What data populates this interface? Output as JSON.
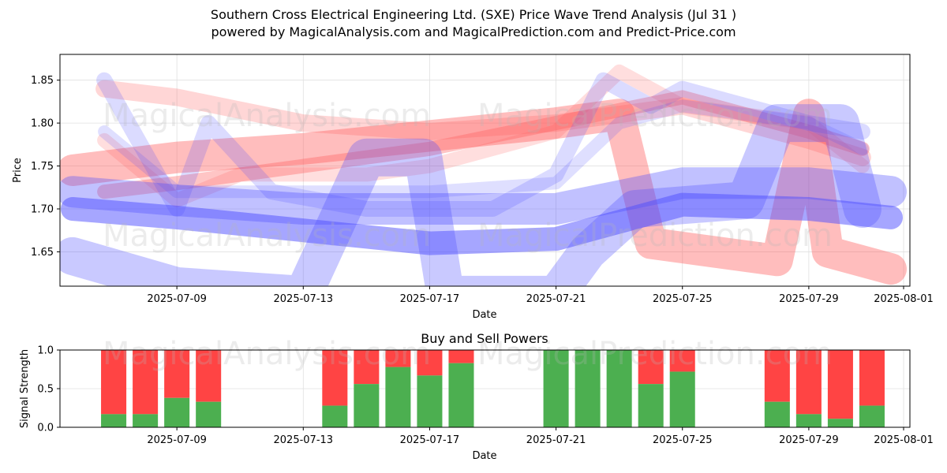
{
  "header": {
    "title": "Southern Cross Electrical Engineering Ltd. (SXE) Price Wave Trend Analysis (Jul 31 )",
    "subtitle": "powered by MagicalAnalysis.com and MagicalPrediction.com and Predict-Price.com"
  },
  "watermarks": [
    "MagicalAnalysis.com",
    "MagicalPrediction.com"
  ],
  "colors": {
    "buy": "#4caf50",
    "sell": "#ff4444",
    "red_band": "#ff5a5a",
    "blue_band": "#4d4dff",
    "grid": "#e0e0e0"
  },
  "chart_data": [
    {
      "type": "line",
      "name": "price-wave-chart",
      "xlabel": "Date",
      "ylabel": "Price",
      "xticks": [
        "2025-07-09",
        "2025-07-13",
        "2025-07-17",
        "2025-07-21",
        "2025-07-25",
        "2025-07-29",
        "2025-08-01"
      ],
      "yticks": [
        "1.65",
        "1.70",
        "1.75",
        "1.80",
        "1.85"
      ],
      "yrange": [
        1.61,
        1.88
      ],
      "xrange_days": [
        5.3,
        32.2
      ],
      "grid": true,
      "series": [
        {
          "name": "red-wave-1",
          "color": "red",
          "opacity": 0.35,
          "width": 18,
          "points": [
            [
              6.7,
              1.72
            ],
            [
              9,
              1.73
            ],
            [
              13,
              1.75
            ],
            [
              17,
              1.77
            ],
            [
              21,
              1.8
            ],
            [
              25,
              1.83
            ],
            [
              29,
              1.79
            ],
            [
              30.7,
              1.77
            ]
          ]
        },
        {
          "name": "red-wave-2",
          "color": "red",
          "opacity": 0.25,
          "width": 22,
          "points": [
            [
              6.7,
              1.84
            ],
            [
              9,
              1.83
            ],
            [
              13,
              1.8
            ],
            [
              17,
              1.79
            ],
            [
              21,
              1.8
            ],
            [
              25,
              1.82
            ],
            [
              29,
              1.78
            ],
            [
              30.7,
              1.76
            ]
          ]
        },
        {
          "name": "red-wave-3",
          "color": "red",
          "opacity": 0.4,
          "width": 40,
          "points": [
            [
              5.7,
              1.745
            ],
            [
              9,
              1.76
            ],
            [
              13,
              1.77
            ],
            [
              17,
              1.785
            ],
            [
              21,
              1.8
            ],
            [
              23,
              1.81
            ],
            [
              24,
              1.66
            ],
            [
              28,
              1.64
            ],
            [
              29,
              1.81
            ],
            [
              29.6,
              1.65
            ],
            [
              31.6,
              1.63
            ]
          ]
        },
        {
          "name": "red-wave-4",
          "color": "red",
          "opacity": 0.2,
          "width": 18,
          "points": [
            [
              6.7,
              1.78
            ],
            [
              9,
              1.71
            ],
            [
              11,
              1.74
            ],
            [
              15,
              1.74
            ],
            [
              17,
              1.75
            ],
            [
              21,
              1.79
            ],
            [
              23,
              1.86
            ],
            [
              25,
              1.82
            ],
            [
              29,
              1.8
            ],
            [
              30.7,
              1.75
            ]
          ]
        },
        {
          "name": "blue-wave-1",
          "color": "blue",
          "opacity": 0.5,
          "width": 30,
          "points": [
            [
              5.7,
              1.7
            ],
            [
              9,
              1.69
            ],
            [
              13,
              1.675
            ],
            [
              17,
              1.66
            ],
            [
              21,
              1.665
            ],
            [
              25,
              1.705
            ],
            [
              29,
              1.7
            ],
            [
              31.6,
              1.69
            ]
          ]
        },
        {
          "name": "blue-wave-2",
          "color": "blue",
          "opacity": 0.35,
          "width": 40,
          "points": [
            [
              5.7,
              1.72
            ],
            [
              9,
              1.71
            ],
            [
              13,
              1.7
            ],
            [
              17,
              1.7
            ],
            [
              21,
              1.7
            ],
            [
              25,
              1.73
            ],
            [
              29,
              1.73
            ],
            [
              31.6,
              1.72
            ]
          ]
        },
        {
          "name": "blue-wave-3",
          "color": "blue",
          "opacity": 0.3,
          "width": 48,
          "points": [
            [
              5.7,
              1.645
            ],
            [
              9,
              1.61
            ],
            [
              13,
              1.6
            ],
            [
              15,
              1.76
            ],
            [
              16.8,
              1.76
            ],
            [
              17.5,
              1.6
            ],
            [
              21,
              1.6
            ],
            [
              22,
              1.65
            ],
            [
              23.5,
              1.7
            ],
            [
              27,
              1.71
            ],
            [
              28,
              1.8
            ],
            [
              30,
              1.8
            ],
            [
              30.7,
              1.7
            ]
          ]
        },
        {
          "name": "blue-wave-4",
          "color": "blue",
          "opacity": 0.2,
          "width": 20,
          "points": [
            [
              6.7,
              1.85
            ],
            [
              9,
              1.7
            ],
            [
              10,
              1.8
            ],
            [
              12,
              1.72
            ],
            [
              15,
              1.7
            ],
            [
              19,
              1.7
            ],
            [
              21,
              1.74
            ],
            [
              22.5,
              1.85
            ],
            [
              24,
              1.82
            ],
            [
              25,
              1.84
            ],
            [
              29,
              1.8
            ],
            [
              30.7,
              1.79
            ]
          ]
        },
        {
          "name": "blue-wave-5",
          "color": "blue",
          "opacity": 0.18,
          "width": 16,
          "points": [
            [
              6.7,
              1.79
            ],
            [
              9,
              1.72
            ],
            [
              13,
              1.72
            ],
            [
              17,
              1.72
            ],
            [
              21,
              1.73
            ],
            [
              23,
              1.8
            ],
            [
              25,
              1.82
            ],
            [
              29,
              1.8
            ],
            [
              30.7,
              1.77
            ]
          ]
        }
      ]
    },
    {
      "type": "bar",
      "name": "buy-sell-powers-chart",
      "title": "Buy and Sell Powers",
      "xlabel": "Date",
      "ylabel": "Signal Strength",
      "xticks": [
        "2025-07-09",
        "2025-07-13",
        "2025-07-17",
        "2025-07-21",
        "2025-07-25",
        "2025-07-29",
        "2025-08-01"
      ],
      "yticks": [
        "0.0",
        "0.5",
        "1.0"
      ],
      "ylim": [
        0,
        1
      ],
      "xrange_days": [
        5.3,
        32.2
      ],
      "grid": true,
      "bars": [
        {
          "day": 7,
          "buy": 0.17
        },
        {
          "day": 8,
          "buy": 0.17
        },
        {
          "day": 9,
          "buy": 0.38
        },
        {
          "day": 10,
          "buy": 0.33
        },
        {
          "day": 14,
          "buy": 0.28
        },
        {
          "day": 15,
          "buy": 0.56
        },
        {
          "day": 16,
          "buy": 0.78
        },
        {
          "day": 17,
          "buy": 0.67
        },
        {
          "day": 18,
          "buy": 0.83
        },
        {
          "day": 21,
          "buy": 1.0
        },
        {
          "day": 22,
          "buy": 1.0
        },
        {
          "day": 23,
          "buy": 1.0
        },
        {
          "day": 24,
          "buy": 0.56
        },
        {
          "day": 25,
          "buy": 0.72
        },
        {
          "day": 28,
          "buy": 0.33
        },
        {
          "day": 29,
          "buy": 0.17
        },
        {
          "day": 30,
          "buy": 0.11
        },
        {
          "day": 31,
          "buy": 0.28
        }
      ]
    }
  ]
}
